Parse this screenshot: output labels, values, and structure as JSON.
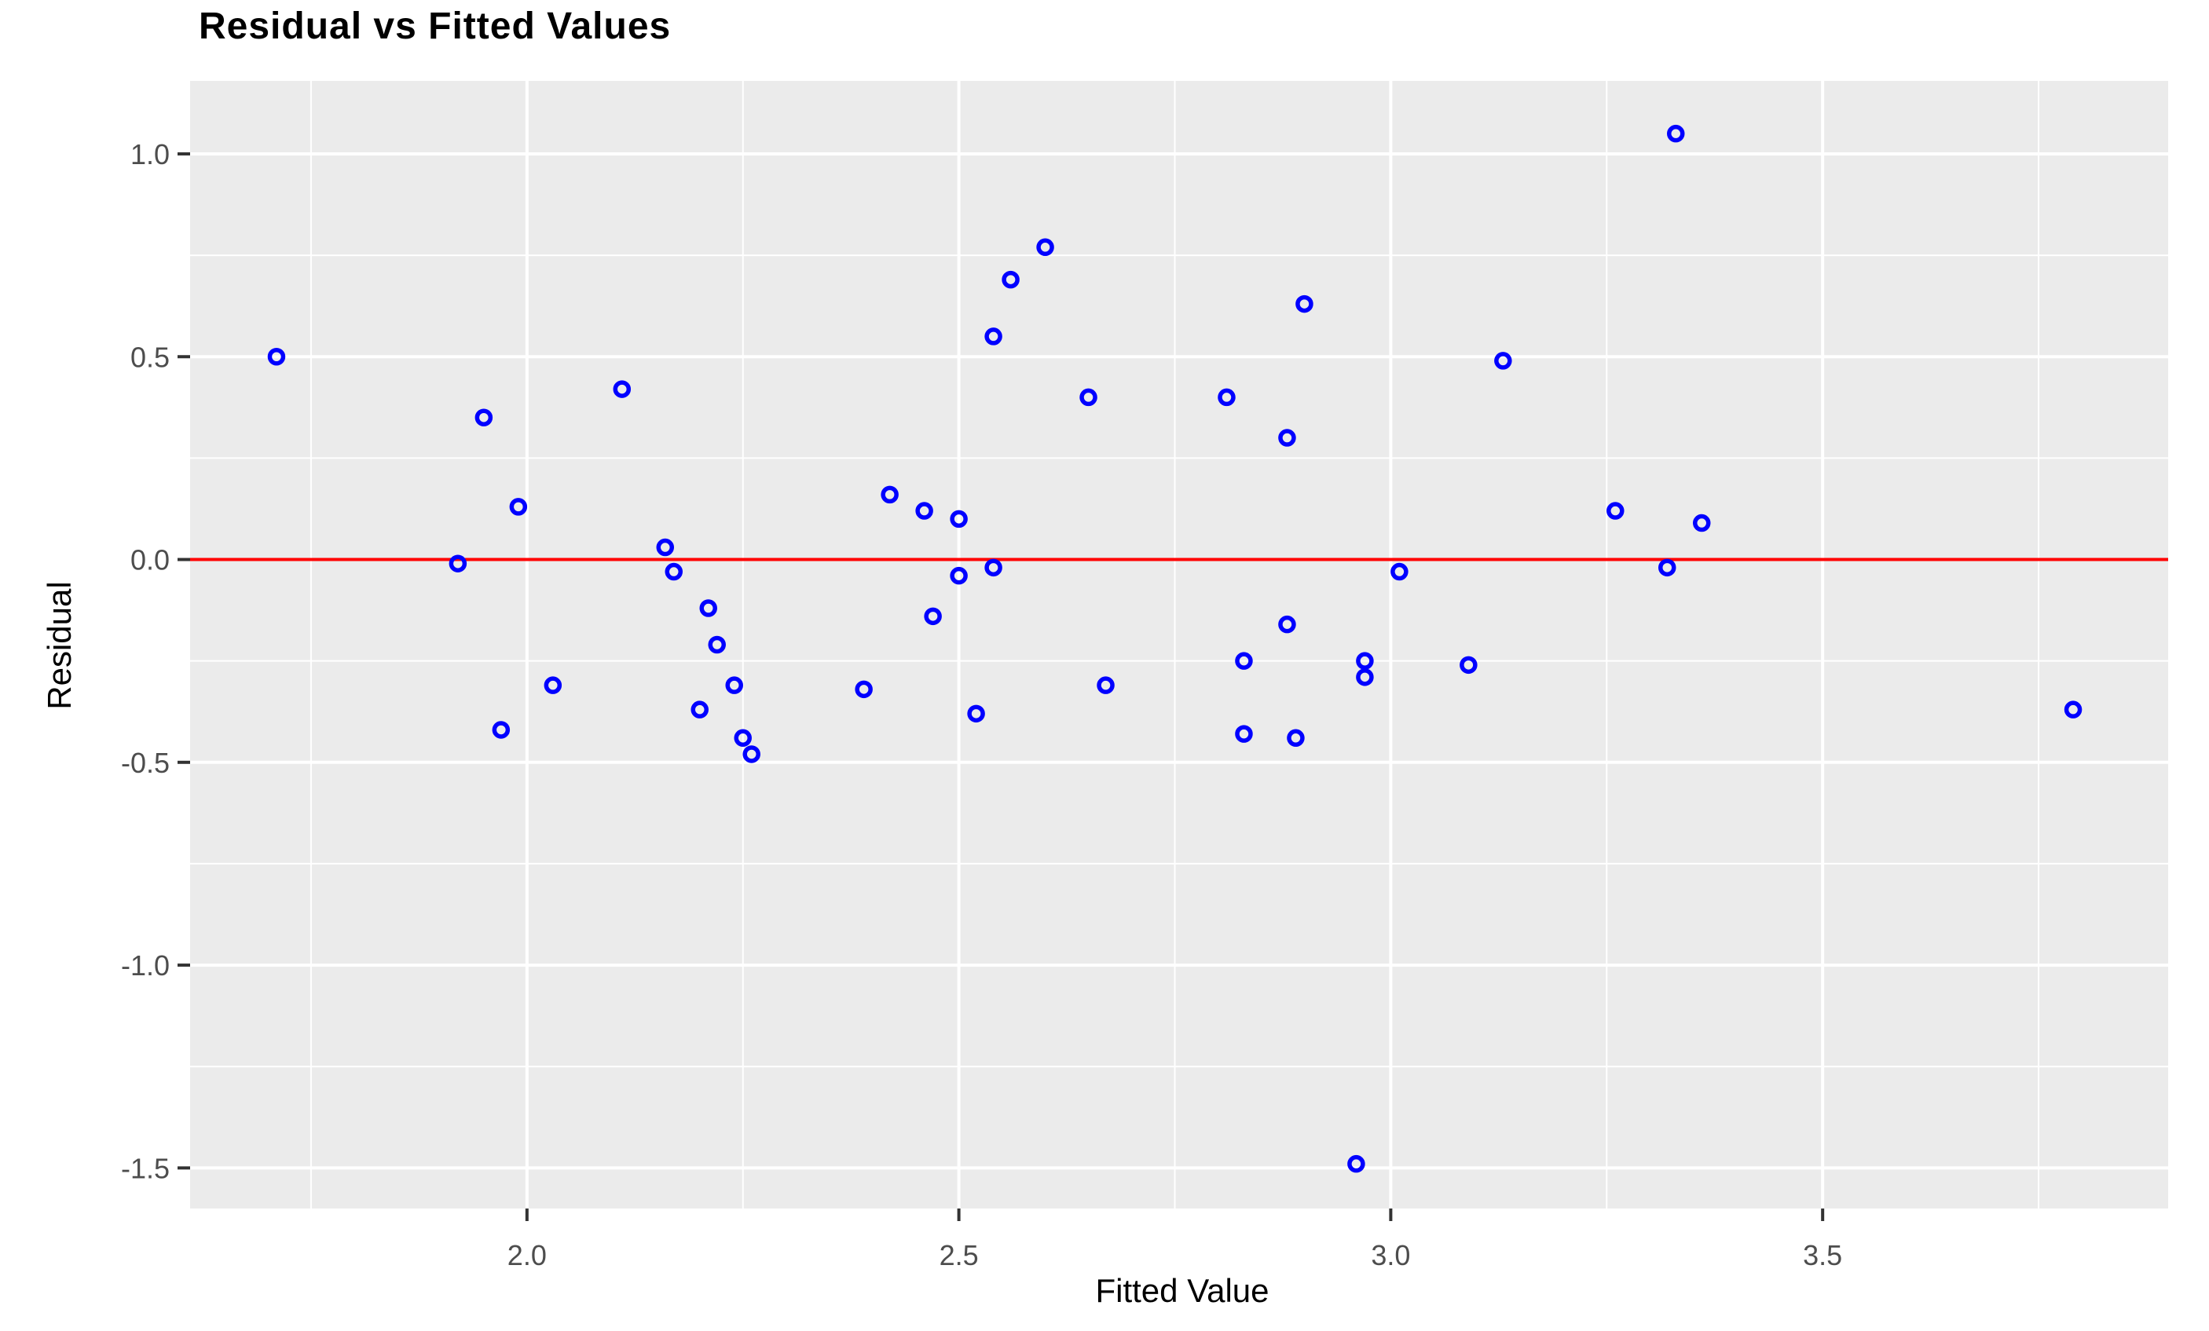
{
  "title": "Residual vs Fitted Values",
  "chart_data": {
    "type": "scatter",
    "title": "Residual vs Fitted Values",
    "xlabel": "Fitted Value",
    "ylabel": "Residual",
    "xlim": [
      1.61,
      3.9
    ],
    "ylim": [
      -1.6,
      1.18
    ],
    "grid": "on",
    "legend": "none",
    "x_major_ticks": [
      {
        "value": 2.0,
        "label": "2.0"
      },
      {
        "value": 2.5,
        "label": "2.5"
      },
      {
        "value": 3.0,
        "label": "3.0"
      },
      {
        "value": 3.5,
        "label": "3.5"
      }
    ],
    "y_major_ticks": [
      {
        "value": 1.0,
        "label": "1.0"
      },
      {
        "value": 0.5,
        "label": "0.5"
      },
      {
        "value": 0.0,
        "label": "0.0"
      },
      {
        "value": -0.5,
        "label": "-0.5"
      },
      {
        "value": -1.0,
        "label": "-1.0"
      },
      {
        "value": -1.5,
        "label": "-1.5"
      }
    ],
    "x_minor_gridlines": [
      1.75,
      2.25,
      2.75,
      3.25,
      3.75
    ],
    "y_minor_gridlines": [
      0.75,
      0.25,
      -0.25,
      -0.75,
      -1.25
    ],
    "reference_line": {
      "y": 0.0,
      "color": "#FF0000"
    },
    "series_name": "residuals",
    "n_points": 46,
    "marker": {
      "shape": "open-circle",
      "color": "#0000FF"
    },
    "points": [
      [
        1.71,
        0.5
      ],
      [
        1.95,
        0.35
      ],
      [
        1.99,
        0.13
      ],
      [
        1.92,
        -0.01
      ],
      [
        1.97,
        -0.42
      ],
      [
        2.03,
        -0.31
      ],
      [
        2.11,
        0.42
      ],
      [
        2.16,
        0.03
      ],
      [
        2.17,
        -0.03
      ],
      [
        2.21,
        -0.12
      ],
      [
        2.22,
        -0.21
      ],
      [
        2.24,
        -0.31
      ],
      [
        2.2,
        -0.37
      ],
      [
        2.25,
        -0.44
      ],
      [
        2.26,
        -0.48
      ],
      [
        2.42,
        0.16
      ],
      [
        2.46,
        0.12
      ],
      [
        2.5,
        0.1
      ],
      [
        2.39,
        -0.32
      ],
      [
        2.47,
        -0.14
      ],
      [
        2.5,
        -0.04
      ],
      [
        2.54,
        -0.02
      ],
      [
        2.52,
        -0.38
      ],
      [
        2.54,
        0.55
      ],
      [
        2.56,
        0.69
      ],
      [
        2.6,
        0.77
      ],
      [
        2.65,
        0.4
      ],
      [
        2.67,
        -0.31
      ],
      [
        2.81,
        0.4
      ],
      [
        2.83,
        -0.25
      ],
      [
        2.83,
        -0.43
      ],
      [
        2.88,
        0.3
      ],
      [
        2.88,
        -0.16
      ],
      [
        2.89,
        -0.44
      ],
      [
        2.9,
        0.63
      ],
      [
        2.96,
        -1.49
      ],
      [
        2.97,
        -0.25
      ],
      [
        2.97,
        -0.29
      ],
      [
        3.01,
        -0.03
      ],
      [
        3.09,
        -0.26
      ],
      [
        3.13,
        0.49
      ],
      [
        3.26,
        0.12
      ],
      [
        3.32,
        -0.02
      ],
      [
        3.33,
        1.05
      ],
      [
        3.36,
        0.09
      ],
      [
        3.79,
        -0.37
      ]
    ],
    "panel_background": "#EBEBEB",
    "gridline_color": "#FFFFFF",
    "tick_color": "#333333",
    "tick_label_color": "#4D4D4D",
    "title_color": "#000000",
    "accent_red": "#FF0000",
    "accent_blue": "#0000FF"
  }
}
